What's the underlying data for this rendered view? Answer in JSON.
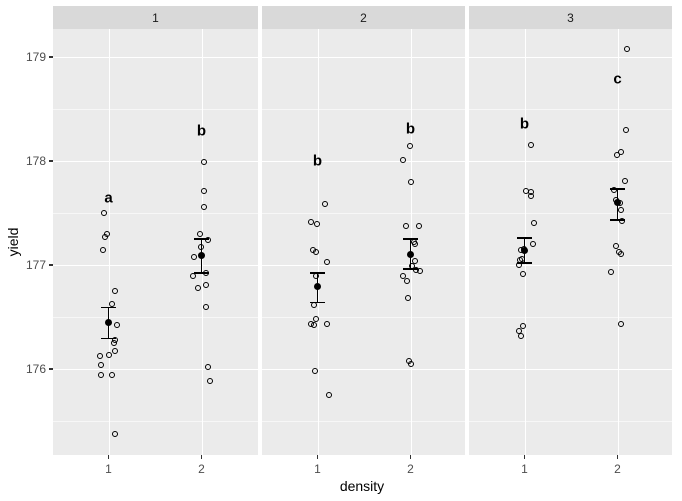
{
  "style": {
    "panel_bg": "#ebebeb",
    "strip_bg": "#d9d9d9",
    "grid_major": "#ffffff",
    "grid_minor": "rgba(255,255,255,0.6)",
    "axis_text": "#4d4d4d",
    "text": "#000000"
  },
  "chart_data": {
    "type": "scatter",
    "title": "",
    "xlabel": "density",
    "ylabel": "yield",
    "x_categories": [
      "1",
      "2"
    ],
    "yticks": [
      176,
      177,
      178,
      179
    ],
    "yticks_minor": [
      175.5,
      176.5,
      177.5,
      178.5
    ],
    "ylim": [
      175.17,
      179.27
    ],
    "legend": "none",
    "grid": true,
    "facet_labels": [
      "1",
      "2",
      "3"
    ],
    "facets": [
      {
        "label": "1",
        "groups": [
          {
            "x": "1",
            "letter": "a",
            "letter_y": 177.64,
            "mean": 176.45,
            "ci_low": 176.29,
            "ci_high": 176.59,
            "points": [
              [
                -5,
                177.5
              ],
              [
                -2,
                177.3
              ],
              [
                -4,
                177.27
              ],
              [
                -6,
                177.14
              ],
              [
                6,
                176.75
              ],
              [
                3,
                176.62
              ],
              [
                8,
                176.42
              ],
              [
                6,
                176.28
              ],
              [
                5,
                176.25
              ],
              [
                6,
                176.17
              ],
              [
                0,
                176.13
              ],
              [
                -9,
                176.12
              ],
              [
                -8,
                176.04
              ],
              [
                -8,
                175.94
              ],
              [
                3,
                175.94
              ],
              [
                6,
                175.37
              ]
            ]
          },
          {
            "x": "2",
            "letter": "b",
            "letter_y": 178.29,
            "mean": 177.09,
            "ci_low": 176.92,
            "ci_high": 177.25,
            "points": [
              [
                2,
                177.99
              ],
              [
                2,
                177.71
              ],
              [
                2,
                177.56
              ],
              [
                -2,
                177.3
              ],
              [
                6,
                177.24
              ],
              [
                -1,
                177.17
              ],
              [
                -8,
                177.08
              ],
              [
                4,
                176.92
              ],
              [
                -9,
                176.89
              ],
              [
                4,
                176.81
              ],
              [
                -4,
                176.78
              ],
              [
                4,
                176.59
              ],
              [
                6,
                176.02
              ],
              [
                8,
                175.88
              ]
            ]
          }
        ]
      },
      {
        "label": "2",
        "groups": [
          {
            "x": "1",
            "letter": "b",
            "letter_y": 178.0,
            "mean": 176.79,
            "ci_low": 176.64,
            "ci_high": 176.92,
            "points": [
              [
                7,
                177.59
              ],
              [
                -7,
                177.41
              ],
              [
                -1,
                177.39
              ],
              [
                -5,
                177.14
              ],
              [
                -2,
                177.12
              ],
              [
                9,
                177.03
              ],
              [
                -2,
                176.89
              ],
              [
                -4,
                176.61
              ],
              [
                -2,
                176.48
              ],
              [
                -7,
                176.43
              ],
              [
                9,
                176.43
              ],
              [
                -4,
                176.42
              ],
              [
                -3,
                175.98
              ],
              [
                11,
                175.75
              ]
            ]
          },
          {
            "x": "2",
            "letter": "b",
            "letter_y": 178.31,
            "mean": 177.1,
            "ci_low": 176.96,
            "ci_high": 177.25,
            "points": [
              [
                -1,
                178.14
              ],
              [
                -8,
                178.01
              ],
              [
                0,
                177.8
              ],
              [
                -5,
                177.37
              ],
              [
                8,
                177.37
              ],
              [
                3,
                177.22
              ],
              [
                4,
                177.2
              ],
              [
                4,
                177.04
              ],
              [
                1,
                176.99
              ],
              [
                5,
                176.95
              ],
              [
                9,
                176.94
              ],
              [
                -8,
                176.89
              ],
              [
                -4,
                176.84
              ],
              [
                -3,
                176.68
              ],
              [
                -2,
                176.07
              ],
              [
                0,
                176.05
              ]
            ]
          }
        ]
      },
      {
        "label": "3",
        "groups": [
          {
            "x": "1",
            "letter": "b",
            "letter_y": 178.36,
            "mean": 177.14,
            "ci_low": 177.02,
            "ci_high": 177.26,
            "points": [
              [
                6,
                178.15
              ],
              [
                1,
                177.71
              ],
              [
                6,
                177.7
              ],
              [
                6,
                177.66
              ],
              [
                9,
                177.4
              ],
              [
                8,
                177.2
              ],
              [
                -4,
                177.14
              ],
              [
                -1,
                177.15
              ],
              [
                -5,
                177.05
              ],
              [
                -3,
                177.06
              ],
              [
                -6,
                177.0
              ],
              [
                -2,
                176.91
              ],
              [
                -2,
                176.41
              ],
              [
                -6,
                176.36
              ],
              [
                -4,
                176.32
              ]
            ]
          },
          {
            "x": "2",
            "letter": "c",
            "letter_y": 178.79,
            "mean": 177.6,
            "ci_low": 177.43,
            "ci_high": 177.73,
            "points": [
              [
                9,
                179.08
              ],
              [
                8,
                178.3
              ],
              [
                3,
                178.09
              ],
              [
                -1,
                178.06
              ],
              [
                7,
                177.81
              ],
              [
                -4,
                177.72
              ],
              [
                -2,
                177.62
              ],
              [
                2,
                177.6
              ],
              [
                3,
                177.53
              ],
              [
                4,
                177.42
              ],
              [
                -2,
                177.18
              ],
              [
                1,
                177.12
              ],
              [
                3,
                177.1
              ],
              [
                -7,
                176.93
              ],
              [
                3,
                176.43
              ]
            ]
          }
        ]
      }
    ]
  }
}
